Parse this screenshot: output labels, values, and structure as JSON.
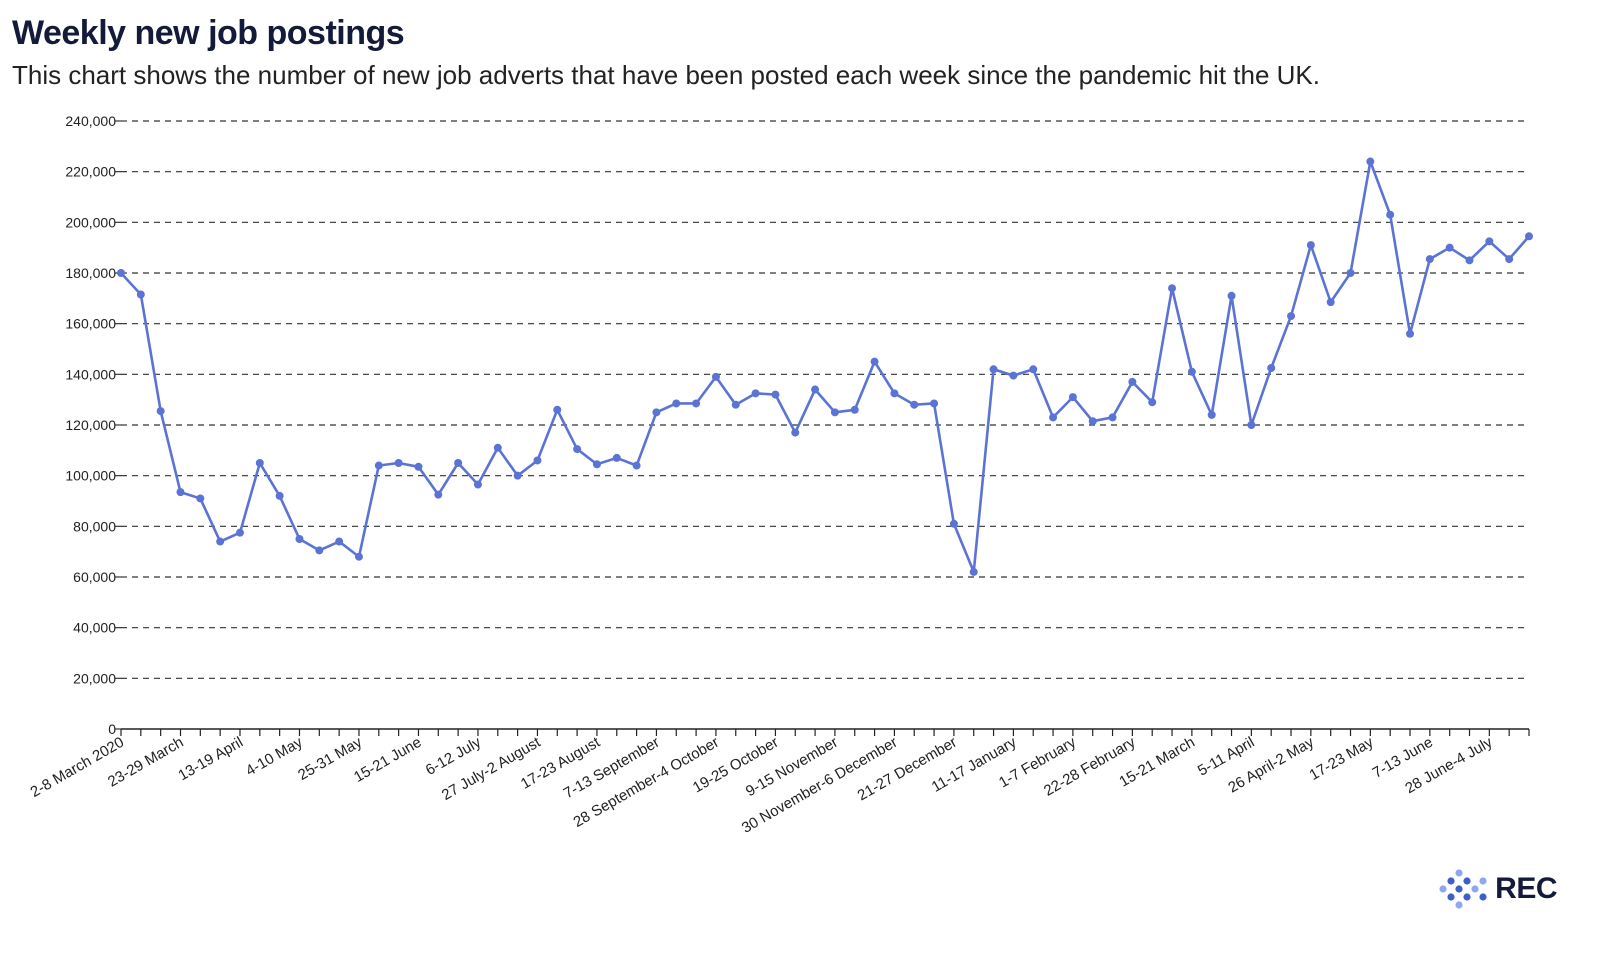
{
  "title": "Weekly new job postings",
  "subtitle": "This chart shows the number of new job adverts that have been posted each week since the pandemic hit the UK.",
  "logo": "REC",
  "colors": {
    "line": "#5b73d4",
    "title": "#131a3a",
    "logo_blue": "#3f5fc8",
    "logo_light": "#8ea7f0"
  },
  "chart_data": {
    "type": "line",
    "title": "Weekly new job postings",
    "xlabel": "",
    "ylabel": "",
    "ylim": [
      0,
      240000
    ],
    "yticks": [
      0,
      20000,
      40000,
      60000,
      80000,
      100000,
      120000,
      140000,
      160000,
      180000,
      200000,
      220000,
      240000
    ],
    "ytick_labels": [
      "0",
      "20,000",
      "40,000",
      "60,000",
      "80,000",
      "100,000",
      "120,000",
      "140,000",
      "160,000",
      "180,000",
      "200,000",
      "220,000",
      "240,000"
    ],
    "grid": true,
    "xtick_labels": [
      {
        "index": 0,
        "label": "2-8 March 2020"
      },
      {
        "index": 3,
        "label": "23-29 March"
      },
      {
        "index": 6,
        "label": "13-19 April"
      },
      {
        "index": 9,
        "label": "4-10 May"
      },
      {
        "index": 12,
        "label": "25-31 May"
      },
      {
        "index": 15,
        "label": "15-21 June"
      },
      {
        "index": 18,
        "label": "6-12 July"
      },
      {
        "index": 21,
        "label": "27 July-2 August"
      },
      {
        "index": 24,
        "label": "17-23 August"
      },
      {
        "index": 27,
        "label": "7-13 September"
      },
      {
        "index": 30,
        "label": "28 September-4 October"
      },
      {
        "index": 33,
        "label": "19-25 October"
      },
      {
        "index": 36,
        "label": "9-15 November"
      },
      {
        "index": 39,
        "label": "30 November-6 December"
      },
      {
        "index": 42,
        "label": "21-27 December"
      },
      {
        "index": 45,
        "label": "11-17 January"
      },
      {
        "index": 48,
        "label": "1-7 February"
      },
      {
        "index": 51,
        "label": "22-28 February"
      },
      {
        "index": 54,
        "label": "15-21 March"
      },
      {
        "index": 57,
        "label": "5-11 April"
      },
      {
        "index": 60,
        "label": "26 April-2 May"
      },
      {
        "index": 63,
        "label": "17-23 May"
      },
      {
        "index": 66,
        "label": "7-13 June"
      },
      {
        "index": 69,
        "label": "28 June-4 July"
      }
    ],
    "series": [
      {
        "values": [
          180000,
          171500,
          125500,
          93500,
          91000,
          74000,
          77500,
          105000,
          92000,
          75000,
          70500,
          74000,
          68000,
          104000,
          105000,
          103500,
          92500,
          105000,
          96500,
          111000,
          100000,
          106000,
          126000,
          110500,
          104500,
          107000,
          104000,
          125000,
          128500,
          128500,
          139000,
          128000,
          132500,
          132000,
          117000,
          134000,
          125000,
          126000,
          145000,
          132500,
          128000,
          128500,
          81000,
          62000,
          142000,
          139500,
          142000,
          123000,
          131000,
          121500,
          123000,
          137000,
          129000,
          174000,
          141000,
          124000,
          171000,
          120000,
          142500,
          163000,
          191000,
          168500,
          180000,
          224000,
          203000,
          156000,
          185500,
          190000,
          185000,
          192500,
          185500,
          194500
        ]
      }
    ]
  }
}
